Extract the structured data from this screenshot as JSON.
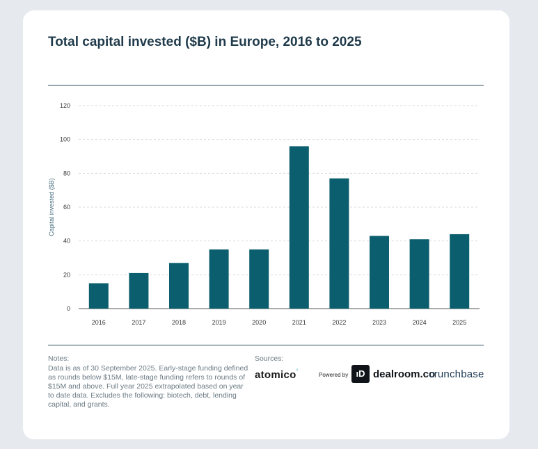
{
  "title": "Total capital invested ($B) in Europe, 2016 to 2025",
  "chart_data": {
    "type": "bar",
    "title": "Total capital invested ($B) in Europe, 2016 to 2025",
    "xlabel": "",
    "ylabel": "Capital invested ($B)",
    "categories": [
      "2016",
      "2017",
      "2018",
      "2019",
      "2020",
      "2021",
      "2022",
      "2023",
      "2024",
      "2025"
    ],
    "values": [
      15,
      21,
      27,
      35,
      35,
      96,
      77,
      43,
      41,
      44
    ],
    "ylim": [
      0,
      120
    ],
    "yticks": [
      0,
      20,
      40,
      60,
      80,
      100,
      120
    ],
    "grid": true,
    "bar_color": "#0b5e6e"
  },
  "notes": {
    "heading": "Notes:",
    "text": "Data is as of 30 September 2025. Early-stage funding defined as rounds below $15M, late-stage funding refers to rounds of $15M and above. Full year 2025 extrapolated based on year to date data. Excludes the following: biotech, debt, lending capital, and grants."
  },
  "sources": {
    "heading": "Sources:",
    "atomico": "atomico",
    "atomico_mark": "°",
    "powered_by": "Powered by",
    "dealroom_badge": "ıD",
    "dealroom": "dealroom.co",
    "crunchbase": "crunchbase"
  }
}
